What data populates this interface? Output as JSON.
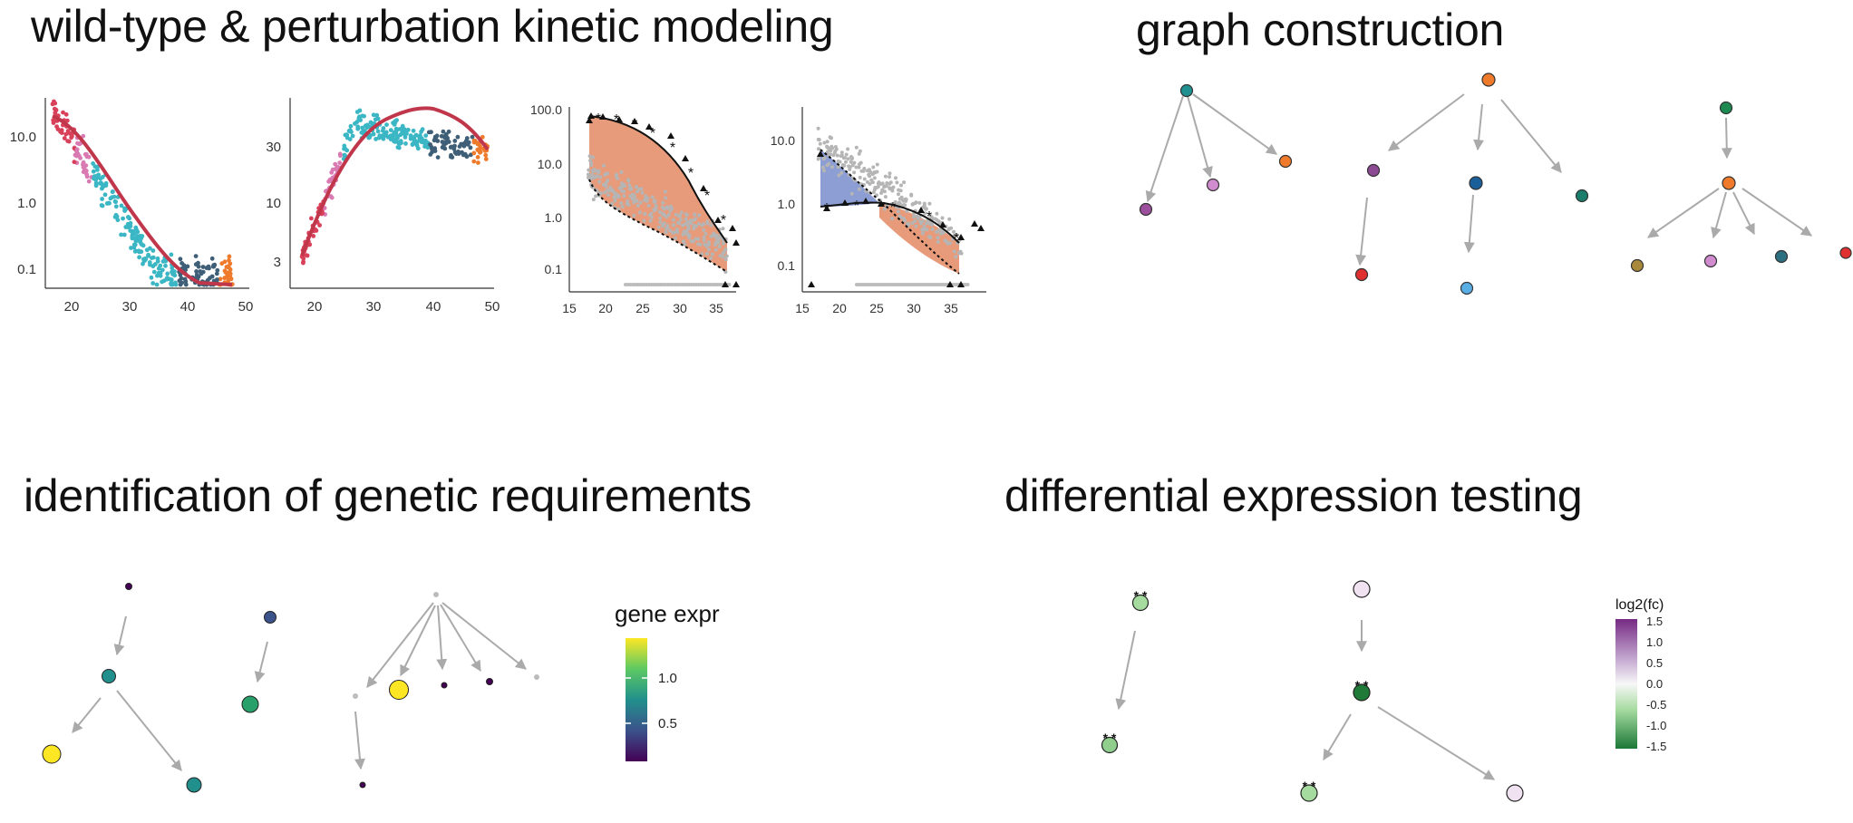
{
  "titles": {
    "kinetic": "wild-type & perturbation kinetic modeling",
    "graph": "graph construction",
    "genetic": "identification of genetic requirements",
    "differential": "differential expression testing"
  },
  "kinetic_plots": [
    {
      "x_ticks": [
        "20",
        "30",
        "40",
        "50"
      ],
      "y_ticks": [
        "10.0",
        "1.0",
        "0.1"
      ]
    },
    {
      "x_ticks": [
        "20",
        "30",
        "40",
        "50"
      ],
      "y_ticks": [
        "30",
        "10",
        "3"
      ]
    },
    {
      "x_ticks": [
        "15",
        "20",
        "25",
        "30",
        "35"
      ],
      "y_ticks": [
        "100.0",
        "10.0",
        "1.0",
        "0.1"
      ]
    },
    {
      "x_ticks": [
        "15",
        "20",
        "25",
        "30",
        "35"
      ],
      "y_ticks": [
        "10.0",
        "1.0",
        "0.1"
      ]
    }
  ],
  "gene_expr_legend": {
    "title": "gene expr",
    "ticks": [
      "1.0",
      "0.5"
    ]
  },
  "fc_legend": {
    "title": "log2(fc)",
    "ticks": [
      "1.5",
      "1.0",
      "0.5",
      "0.0",
      "-0.5",
      "-1.0",
      "-1.5"
    ]
  },
  "colors": {
    "fit_curve": "#c0364a",
    "orange_band": "#e6906c",
    "blue_band": "#7f93cf",
    "arrow": "#aaaaaa"
  }
}
